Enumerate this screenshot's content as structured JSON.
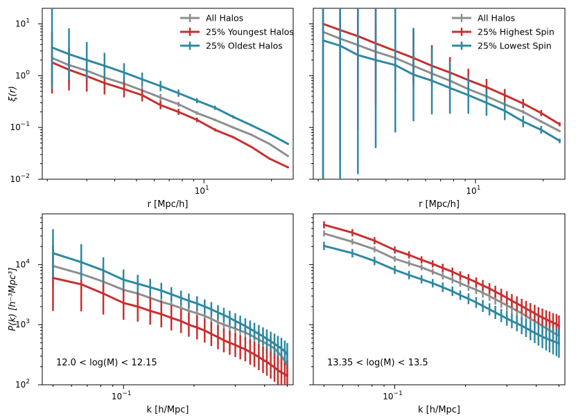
{
  "colors": {
    "all": "#8e8e8e",
    "young": "#c72f2f",
    "old": "#2e88a3",
    "high": "#c72f2f",
    "low": "#2e88a3"
  },
  "chart_data": [
    {
      "type": "line",
      "panel": "top-left",
      "xscale": "log",
      "yscale": "log",
      "xlim": [
        1.9,
        25
      ],
      "ylim": [
        0.01,
        20
      ],
      "xlabel": "r [Mpc/h]",
      "ylabel": "ξ(r)",
      "xticks": [
        {
          "v": 10,
          "base": "10",
          "exp": "1"
        }
      ],
      "yticks": [
        {
          "v": 0.01,
          "base": "10",
          "exp": "−2"
        },
        {
          "v": 0.1,
          "base": "10",
          "exp": "−1"
        },
        {
          "v": 1,
          "base": "10",
          "exp": "0"
        },
        {
          "v": 10,
          "base": "10",
          "exp": "1"
        }
      ],
      "legend": "top-right",
      "annotation": "",
      "series": [
        {
          "name": "All Halos",
          "color_key": "all",
          "x": [
            2.1,
            2.5,
            3.0,
            3.6,
            4.4,
            5.3,
            6.4,
            7.7,
            9.3,
            11.2,
            13.5,
            16.3,
            19.6,
            23.7
          ],
          "y": [
            2.2,
            1.6,
            1.25,
            0.92,
            0.7,
            0.52,
            0.38,
            0.28,
            0.19,
            0.14,
            0.1,
            0.072,
            0.048,
            0.028
          ],
          "err": [
            0.5,
            0.35,
            0.25,
            0.18,
            0.13,
            0.09,
            0.07,
            0.05,
            0.035,
            0.025,
            0.02,
            0.015,
            0.012,
            0.01
          ]
        },
        {
          "name": "25% Youngest Halos",
          "color_key": "young",
          "x": [
            2.1,
            2.5,
            3.0,
            3.6,
            4.4,
            5.3,
            6.4,
            7.7,
            9.3,
            11.2,
            13.5,
            16.3,
            19.6,
            23.7
          ],
          "y": [
            1.8,
            1.3,
            0.98,
            0.72,
            0.55,
            0.42,
            0.27,
            0.2,
            0.14,
            0.09,
            0.065,
            0.042,
            0.025,
            0.017
          ],
          "err": [
            0.6,
            0.4,
            0.3,
            0.22,
            0.16,
            0.12,
            0.08,
            0.06,
            0.045,
            0.03,
            0.022,
            0.016,
            0.012,
            0.01
          ]
        },
        {
          "name": "25% Oldest Halos",
          "color_key": "old",
          "x": [
            2.1,
            2.5,
            3.0,
            3.6,
            4.4,
            5.3,
            6.4,
            7.7,
            9.3,
            11.2,
            13.5,
            16.3,
            19.6,
            23.7
          ],
          "y": [
            3.5,
            2.6,
            2.0,
            1.55,
            1.15,
            0.85,
            0.63,
            0.46,
            0.33,
            0.24,
            0.16,
            0.11,
            0.075,
            0.048
          ],
          "err": [
            0.8,
            0.5,
            0.35,
            0.25,
            0.18,
            0.13,
            0.1,
            0.07,
            0.05,
            0.04,
            0.03,
            0.022,
            0.018,
            0.014
          ]
        }
      ]
    },
    {
      "type": "line",
      "panel": "top-right",
      "xscale": "log",
      "yscale": "log",
      "xlim": [
        1.9,
        25
      ],
      "ylim": [
        0.01,
        20
      ],
      "xlabel": "r [Mpc/h]",
      "ylabel": "",
      "xticks": [
        {
          "v": 10,
          "base": "10",
          "exp": "1"
        }
      ],
      "yticks": [],
      "legend": "top-right",
      "annotation": "",
      "series": [
        {
          "name": "All Halos",
          "color_key": "all",
          "x": [
            2.1,
            2.5,
            3.0,
            3.6,
            4.4,
            5.3,
            6.4,
            7.7,
            9.3,
            11.2,
            13.5,
            16.3,
            19.6,
            23.7
          ],
          "y": [
            7.0,
            5.2,
            3.9,
            2.9,
            2.2,
            1.55,
            1.1,
            0.8,
            0.55,
            0.4,
            0.28,
            0.2,
            0.13,
            0.085
          ],
          "err": [
            1.2,
            0.9,
            0.7,
            0.5,
            0.38,
            0.27,
            0.19,
            0.14,
            0.1,
            0.07,
            0.05,
            0.036,
            0.025,
            0.018
          ]
        },
        {
          "name": "25% Highest Spin",
          "color_key": "high",
          "x": [
            2.1,
            2.5,
            3.0,
            3.6,
            4.4,
            5.3,
            6.4,
            7.7,
            9.3,
            11.2,
            13.5,
            16.3,
            19.6,
            23.7
          ],
          "y": [
            10.0,
            7.6,
            5.8,
            4.2,
            3.0,
            2.2,
            1.55,
            1.15,
            0.82,
            0.6,
            0.42,
            0.29,
            0.19,
            0.115
          ],
          "err": [
            3.5,
            2.5,
            1.8,
            1.2,
            0.8,
            0.55,
            0.4,
            0.3,
            0.22,
            0.16,
            0.12,
            0.09,
            0.06,
            0.04
          ]
        },
        {
          "name": "25% Lowest Spin",
          "color_key": "low",
          "x": [
            2.1,
            2.5,
            3.0,
            3.6,
            4.4,
            5.3,
            6.4,
            7.7,
            9.3,
            11.2,
            13.5,
            16.3,
            19.6,
            23.7
          ],
          "y": [
            4.8,
            3.8,
            2.5,
            2.0,
            1.6,
            1.05,
            0.8,
            0.58,
            0.42,
            0.3,
            0.21,
            0.13,
            0.09,
            0.055
          ],
          "err": [
            3.8,
            3.2,
            2.3,
            1.7,
            1.3,
            0.9,
            0.65,
            0.5,
            0.36,
            0.25,
            0.18,
            0.11,
            0.075,
            0.045
          ]
        }
      ]
    },
    {
      "type": "line",
      "panel": "bottom-left",
      "xscale": "log",
      "yscale": "log",
      "xlim": [
        0.045,
        0.53
      ],
      "ylim": [
        100,
        70000
      ],
      "xlabel": "k [h/Mpc]",
      "ylabel": "P(k) [h⁻³Mpc³]",
      "xticks": [
        {
          "v": 0.1,
          "base": "10",
          "exp": "−1"
        }
      ],
      "yticks": [
        {
          "v": 100,
          "base": "10",
          "exp": "2"
        },
        {
          "v": 1000,
          "base": "10",
          "exp": "3"
        },
        {
          "v": 10000,
          "base": "10",
          "exp": "4"
        }
      ],
      "legend": "",
      "annotation": "12.0 < log(M) < 12.15",
      "series": [
        {
          "name": "All Halos",
          "color_key": "all",
          "x": [
            0.05,
            0.066,
            0.082,
            0.1,
            0.115,
            0.13,
            0.145,
            0.16,
            0.176,
            0.19,
            0.206,
            0.222,
            0.237,
            0.253,
            0.268,
            0.284,
            0.3,
            0.315,
            0.331,
            0.347,
            0.362,
            0.378,
            0.394,
            0.409,
            0.425,
            0.441,
            0.456,
            0.472,
            0.488,
            0.5
          ],
          "y": [
            9500,
            7000,
            5200,
            3800,
            3300,
            2800,
            2400,
            2150,
            1900,
            1700,
            1550,
            1400,
            1250,
            1100,
            1000,
            930,
            860,
            800,
            740,
            680,
            620,
            560,
            520,
            480,
            440,
            400,
            350,
            300,
            250,
            210
          ],
          "err": [
            0.35,
            0.3,
            0.25,
            0.2,
            0.18,
            0.17,
            0.16,
            0.15,
            0.14,
            0.13,
            0.13,
            0.13,
            0.13,
            0.13,
            0.13,
            0.13,
            0.13,
            0.13,
            0.13,
            0.14,
            0.14,
            0.15,
            0.15,
            0.16,
            0.16,
            0.17,
            0.17,
            0.18,
            0.18,
            0.19
          ]
        },
        {
          "name": "25% Youngest Halos",
          "color_key": "young",
          "x": [
            0.05,
            0.066,
            0.082,
            0.1,
            0.115,
            0.13,
            0.145,
            0.16,
            0.176,
            0.19,
            0.206,
            0.222,
            0.237,
            0.253,
            0.268,
            0.284,
            0.3,
            0.315,
            0.331,
            0.347,
            0.362,
            0.378,
            0.394,
            0.409,
            0.425,
            0.441,
            0.456,
            0.472,
            0.488,
            0.5
          ],
          "y": [
            6000,
            4700,
            3300,
            2300,
            2000,
            1700,
            1500,
            1300,
            1150,
            1000,
            900,
            800,
            700,
            620,
            550,
            500,
            460,
            420,
            390,
            350,
            320,
            290,
            260,
            240,
            215,
            195,
            175,
            160,
            150,
            140
          ],
          "err": [
            0.55,
            0.45,
            0.35,
            0.28,
            0.25,
            0.23,
            0.22,
            0.21,
            0.2,
            0.2,
            0.2,
            0.2,
            0.2,
            0.2,
            0.2,
            0.2,
            0.2,
            0.2,
            0.2,
            0.21,
            0.21,
            0.22,
            0.22,
            0.23,
            0.23,
            0.24,
            0.24,
            0.25,
            0.25,
            0.26
          ]
        },
        {
          "name": "25% Oldest Halos",
          "color_key": "old",
          "x": [
            0.05,
            0.066,
            0.082,
            0.1,
            0.115,
            0.13,
            0.145,
            0.16,
            0.176,
            0.19,
            0.206,
            0.222,
            0.237,
            0.253,
            0.268,
            0.284,
            0.3,
            0.315,
            0.331,
            0.347,
            0.362,
            0.378,
            0.394,
            0.409,
            0.425,
            0.441,
            0.456,
            0.472,
            0.488,
            0.5
          ],
          "y": [
            15500,
            11000,
            8000,
            5600,
            4800,
            4200,
            3700,
            3200,
            2800,
            2500,
            2250,
            2000,
            1800,
            1600,
            1450,
            1300,
            1150,
            1050,
            950,
            850,
            780,
            700,
            640,
            580,
            530,
            480,
            440,
            400,
            360,
            320
          ],
          "err": [
            0.4,
            0.3,
            0.22,
            0.17,
            0.15,
            0.14,
            0.13,
            0.12,
            0.12,
            0.12,
            0.12,
            0.12,
            0.12,
            0.12,
            0.12,
            0.12,
            0.13,
            0.13,
            0.13,
            0.14,
            0.14,
            0.15,
            0.15,
            0.16,
            0.16,
            0.17,
            0.17,
            0.18,
            0.18,
            0.19
          ]
        }
      ]
    },
    {
      "type": "line",
      "panel": "bottom-right",
      "xscale": "log",
      "yscale": "log",
      "xlim": [
        0.045,
        0.53
      ],
      "ylim": [
        100,
        70000
      ],
      "xlabel": "k [h/Mpc]",
      "ylabel": "",
      "xticks": [
        {
          "v": 0.1,
          "base": "10",
          "exp": "−1"
        }
      ],
      "yticks": [],
      "legend": "",
      "annotation": "13.35 < log(M) < 13.5",
      "series": [
        {
          "name": "All Halos",
          "color_key": "all",
          "x": [
            0.05,
            0.066,
            0.082,
            0.1,
            0.115,
            0.13,
            0.145,
            0.16,
            0.176,
            0.19,
            0.206,
            0.222,
            0.237,
            0.253,
            0.268,
            0.284,
            0.3,
            0.315,
            0.331,
            0.347,
            0.362,
            0.378,
            0.394,
            0.409,
            0.425,
            0.441,
            0.456,
            0.472,
            0.488,
            0.5
          ],
          "y": [
            33000,
            24000,
            18000,
            12500,
            10500,
            9000,
            7600,
            6500,
            5600,
            4900,
            4300,
            3800,
            3400,
            3000,
            2650,
            2350,
            2100,
            1900,
            1700,
            1550,
            1400,
            1250,
            1150,
            1050,
            950,
            870,
            800,
            740,
            690,
            650
          ],
          "err": [
            0.05,
            0.05,
            0.05,
            0.05,
            0.05,
            0.05,
            0.05,
            0.06,
            0.06,
            0.06,
            0.07,
            0.07,
            0.08,
            0.08,
            0.09,
            0.09,
            0.1,
            0.1,
            0.11,
            0.11,
            0.12,
            0.12,
            0.13,
            0.13,
            0.14,
            0.14,
            0.15,
            0.15,
            0.16,
            0.16
          ]
        },
        {
          "name": "25% Highest Spin",
          "color_key": "high",
          "x": [
            0.05,
            0.066,
            0.082,
            0.1,
            0.115,
            0.13,
            0.145,
            0.16,
            0.176,
            0.19,
            0.206,
            0.222,
            0.237,
            0.253,
            0.268,
            0.284,
            0.3,
            0.315,
            0.331,
            0.347,
            0.362,
            0.378,
            0.394,
            0.409,
            0.425,
            0.441,
            0.456,
            0.472,
            0.488,
            0.5
          ],
          "y": [
            46000,
            34000,
            25000,
            17500,
            14500,
            12000,
            10300,
            8800,
            7600,
            6600,
            5800,
            5100,
            4500,
            4000,
            3550,
            3150,
            2800,
            2500,
            2250,
            2050,
            1850,
            1700,
            1550,
            1420,
            1320,
            1230,
            1150,
            1080,
            1020,
            960
          ],
          "err": [
            0.06,
            0.06,
            0.06,
            0.06,
            0.06,
            0.06,
            0.06,
            0.07,
            0.07,
            0.07,
            0.08,
            0.08,
            0.09,
            0.09,
            0.1,
            0.1,
            0.11,
            0.11,
            0.12,
            0.12,
            0.13,
            0.13,
            0.14,
            0.14,
            0.15,
            0.15,
            0.16,
            0.16,
            0.17,
            0.17
          ]
        },
        {
          "name": "25% Lowest Spin",
          "color_key": "low",
          "x": [
            0.05,
            0.066,
            0.082,
            0.1,
            0.115,
            0.13,
            0.145,
            0.16,
            0.176,
            0.19,
            0.206,
            0.222,
            0.237,
            0.253,
            0.268,
            0.284,
            0.3,
            0.315,
            0.331,
            0.347,
            0.362,
            0.378,
            0.394,
            0.409,
            0.425,
            0.441,
            0.456,
            0.472,
            0.488,
            0.5
          ],
          "y": [
            20500,
            15500,
            11500,
            8200,
            6700,
            5700,
            4900,
            4200,
            3600,
            3100,
            2700,
            2350,
            2050,
            1800,
            1600,
            1420,
            1270,
            1150,
            1050,
            960,
            880,
            800,
            730,
            680,
            630,
            590,
            560,
            530,
            510,
            490
          ],
          "err": [
            0.07,
            0.07,
            0.07,
            0.07,
            0.07,
            0.07,
            0.07,
            0.08,
            0.08,
            0.08,
            0.09,
            0.09,
            0.1,
            0.1,
            0.11,
            0.11,
            0.12,
            0.12,
            0.13,
            0.14,
            0.15,
            0.16,
            0.17,
            0.18,
            0.19,
            0.2,
            0.21,
            0.22,
            0.23,
            0.24
          ]
        }
      ]
    }
  ]
}
